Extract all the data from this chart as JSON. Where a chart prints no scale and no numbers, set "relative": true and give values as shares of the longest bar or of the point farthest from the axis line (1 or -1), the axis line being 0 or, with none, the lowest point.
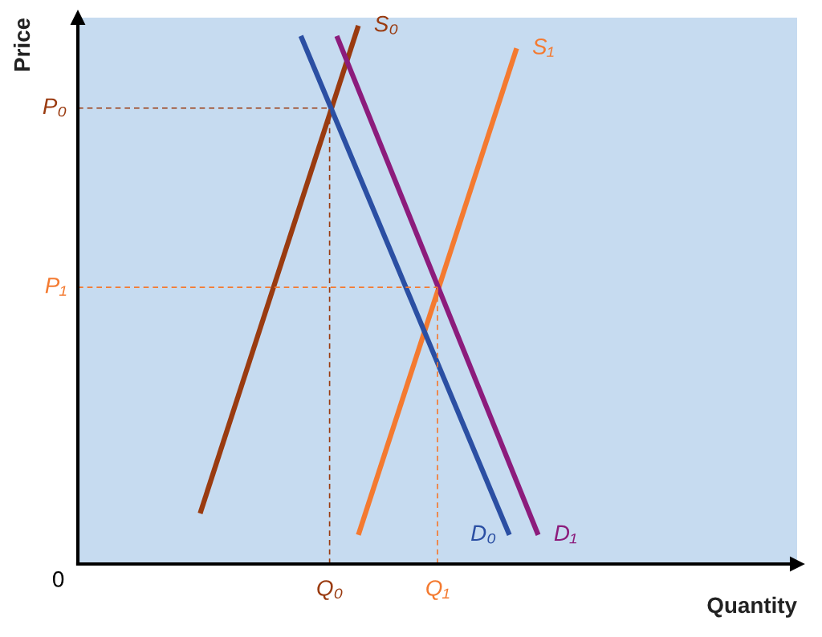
{
  "chart_data": {
    "type": "line",
    "relative": true,
    "xlabel": "Quantity",
    "ylabel": "Price",
    "marker": "none",
    "categories": [
      null,
      null,
      null,
      null,
      null,
      null,
      null,
      null,
      null,
      null,
      null,
      null,
      null,
      null,
      null,
      null,
      null,
      null,
      null,
      null,
      null,
      null,
      null,
      null,
      null,
      null,
      null,
      null,
      null,
      null,
      null,
      null,
      null,
      null,
      null,
      "Q₀",
      null,
      null,
      null,
      null,
      null,
      null,
      null,
      null,
      null,
      null,
      null,
      null,
      null,
      null,
      "Q₁",
      null,
      null,
      null,
      null,
      null,
      null,
      null,
      null,
      null,
      null,
      null,
      null,
      null,
      null,
      null,
      null,
      null,
      null,
      null,
      null,
      null,
      null,
      null,
      null,
      null,
      null,
      null,
      null,
      null,
      null,
      null,
      null,
      null,
      null,
      null,
      null,
      null,
      null,
      null,
      null,
      null,
      null,
      null,
      null,
      null,
      null,
      null,
      null,
      null,
      null
    ],
    "series": [
      {
        "name": "S₀",
        "color": "#9a3b10",
        "values": [
          null,
          null,
          null,
          null,
          null,
          null,
          null,
          null,
          null,
          null,
          null,
          null,
          null,
          null,
          null,
          null,
          null,
          0.094,
          null,
          null,
          null,
          null,
          null,
          null,
          null,
          null,
          null,
          null,
          null,
          null,
          null,
          null,
          null,
          null,
          null,
          null,
          null,
          null,
          null,
          1,
          null,
          null,
          null,
          null,
          null,
          null,
          null,
          null,
          null,
          null,
          null,
          null,
          null,
          null,
          null,
          null,
          null,
          null,
          null,
          null,
          null,
          null,
          null,
          null,
          null,
          null,
          null,
          null,
          null,
          null,
          null,
          null,
          null,
          null,
          null,
          null,
          null,
          null,
          null,
          null,
          null,
          null,
          null,
          null,
          null,
          null,
          null,
          null,
          null,
          null,
          null,
          null,
          null,
          null,
          null,
          null,
          null,
          null,
          null,
          null,
          null
        ]
      },
      {
        "name": "S₁",
        "color": "#f47a30",
        "values": [
          null,
          null,
          null,
          null,
          null,
          null,
          null,
          null,
          null,
          null,
          null,
          null,
          null,
          null,
          null,
          null,
          null,
          null,
          null,
          null,
          null,
          null,
          null,
          null,
          null,
          null,
          null,
          null,
          null,
          null,
          null,
          null,
          null,
          null,
          null,
          null,
          null,
          null,
          null,
          0.054,
          null,
          null,
          null,
          null,
          null,
          null,
          null,
          null,
          null,
          null,
          null,
          null,
          null,
          null,
          null,
          null,
          null,
          null,
          null,
          null,
          null,
          0.958,
          null,
          null,
          null,
          null,
          null,
          null,
          null,
          null,
          null,
          null,
          null,
          null,
          null,
          null,
          null,
          null,
          null,
          null,
          null,
          null,
          null,
          null,
          null,
          null,
          null,
          null,
          null,
          null,
          null,
          null,
          null,
          null,
          null,
          null,
          null,
          null,
          null,
          null,
          null
        ]
      },
      {
        "name": "D₀",
        "color": "#2b4fa3",
        "values": [
          null,
          null,
          null,
          null,
          null,
          null,
          null,
          null,
          null,
          null,
          null,
          null,
          null,
          null,
          null,
          null,
          null,
          null,
          null,
          null,
          null,
          null,
          null,
          null,
          null,
          null,
          null,
          null,
          null,
          null,
          null,
          0.981,
          null,
          null,
          null,
          null,
          null,
          null,
          null,
          null,
          null,
          null,
          null,
          null,
          null,
          null,
          null,
          null,
          null,
          null,
          null,
          null,
          null,
          null,
          null,
          null,
          null,
          null,
          null,
          null,
          0.054,
          null,
          null,
          null,
          null,
          null,
          null,
          null,
          null,
          null,
          null,
          null,
          null,
          null,
          null,
          null,
          null,
          null,
          null,
          null,
          null,
          null,
          null,
          null,
          null,
          null,
          null,
          null,
          null,
          null,
          null,
          null,
          null,
          null,
          null,
          null,
          null,
          null,
          null,
          null,
          null
        ]
      },
      {
        "name": "D₁",
        "color": "#8c1c7c",
        "values": [
          null,
          null,
          null,
          null,
          null,
          null,
          null,
          null,
          null,
          null,
          null,
          null,
          null,
          null,
          null,
          null,
          null,
          null,
          null,
          null,
          null,
          null,
          null,
          null,
          null,
          null,
          null,
          null,
          null,
          null,
          null,
          null,
          null,
          null,
          null,
          null,
          0.981,
          null,
          null,
          null,
          null,
          null,
          null,
          null,
          null,
          null,
          null,
          null,
          null,
          null,
          null,
          null,
          null,
          null,
          null,
          null,
          null,
          null,
          null,
          null,
          null,
          null,
          null,
          null,
          0.054,
          null,
          null,
          null,
          null,
          null,
          null,
          null,
          null,
          null,
          null,
          null,
          null,
          null,
          null,
          null,
          null,
          null,
          null,
          null,
          null,
          null,
          null,
          null,
          null,
          null,
          null,
          null,
          null,
          null,
          null,
          null,
          null,
          null,
          null,
          null,
          null
        ]
      }
    ],
    "ref_lines": [
      {
        "axis": "y",
        "value": 0.847,
        "label": "P₀",
        "color": "#9a3b10",
        "line_style": "dashed"
      },
      {
        "axis": "y",
        "value": 0.514,
        "label": "P₁",
        "color": "#f47a30",
        "line_style": "dashed"
      },
      {
        "axis": "x",
        "value": "Q₀",
        "color": "#9a3b10",
        "line_style": "dashed"
      },
      {
        "axis": "x",
        "value": "Q₁",
        "color": "#f47a30",
        "line_style": "dashed"
      }
    ],
    "annotations": [
      "0"
    ]
  }
}
